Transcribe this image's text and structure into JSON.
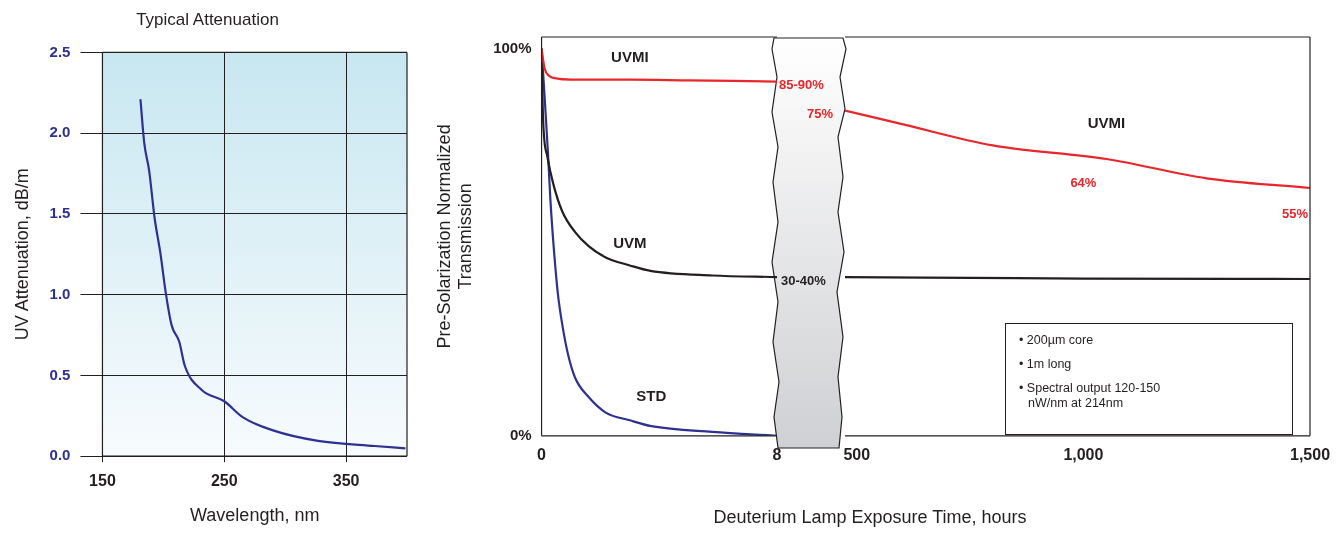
{
  "chart_data": [
    {
      "type": "line",
      "title": "Typical Attenuation",
      "xlabel": "Wavelength, nm",
      "ylabel": "UV Attenuation, dB/m",
      "xlim": [
        150,
        400
      ],
      "xticks": [
        150,
        250,
        350
      ],
      "ylim": [
        0,
        2.5
      ],
      "yticks": [
        {
          "value": 0,
          "label": "0.0"
        },
        0.5,
        {
          "value": 1,
          "label": "1.0"
        },
        1.5,
        {
          "value": 2,
          "label": "2.0"
        },
        2.5
      ],
      "grid": true,
      "series": [
        {
          "color": "#2e3192",
          "x": [
            181.2,
            184.3,
            188.3,
            192.9,
            197.5,
            202.2,
            206.8,
            213,
            217.6,
            231.5,
            250,
            265.4,
            290,
            327,
            373.5,
            398.7
          ],
          "values": [
            2.21,
            1.94,
            1.77,
            1.47,
            1.26,
            1.0,
            0.81,
            0.71,
            0.56,
            0.41,
            0.34,
            0.24,
            0.16,
            0.095,
            0.063,
            0.049
          ]
        }
      ]
    },
    {
      "type": "line",
      "ylabel": "Pre-Solarization Normalized Transmission",
      "xlim": [
        0,
        8
      ],
      "xticks": [
        0,
        8
      ],
      "ylim": [
        0,
        103
      ],
      "yticks": [
        {
          "value": 0,
          "label": "0%"
        },
        {
          "value": 100,
          "label": "100%"
        }
      ],
      "annotations": [
        {
          "text": "85-90%",
          "x": 8,
          "y": 91.5
        },
        {
          "text": "30-40%",
          "x": 8,
          "y": 41
        }
      ],
      "series": [
        {
          "name": "UVMI",
          "color": "#e8262b",
          "x": [
            0,
            0.1,
            0.25,
            0.5,
            1,
            3,
            5,
            8
          ],
          "values": [
            100,
            95,
            93,
            92.3,
            92,
            92,
            91.8,
            91.5
          ]
        },
        {
          "name": "UVM",
          "color": "#231f20",
          "x": [
            0,
            0.05,
            0.2,
            0.4,
            0.7,
            1.14,
            1.6,
            2.2,
            3,
            3.7,
            5.8,
            8
          ],
          "values": [
            100,
            82,
            72,
            65,
            58,
            52.6,
            49,
            46,
            44,
            42.6,
            41.4,
            41
          ]
        },
        {
          "name": "STD",
          "color": "#2e3192",
          "x": [
            0,
            0.1,
            0.21,
            0.3,
            0.41,
            0.55,
            0.72,
            0.9,
            1.14,
            1.6,
            2.18,
            3,
            3.73,
            5.8,
            8
          ],
          "values": [
            100,
            88,
            74,
            61,
            49,
            37,
            28,
            21,
            15,
            10,
            6,
            4,
            2.5,
            1,
            0
          ]
        }
      ]
    },
    {
      "type": "line",
      "xlabel": "Deuterium Lamp Exposure Time, hours",
      "xlim": [
        474,
        1500
      ],
      "xticks": [
        500,
        {
          "value": 1000,
          "label": "1,000"
        },
        {
          "value": 1500,
          "label": "1,500"
        }
      ],
      "ylim": [
        0,
        103
      ],
      "tick_labels": "x",
      "annotations": [
        {
          "text": "75%",
          "x": 474,
          "y": 84
        },
        {
          "text": "64%",
          "x": 1000,
          "y": 72.5
        },
        {
          "text": "55%",
          "x": 1500,
          "y": 64
        },
        "• 200µm core",
        "• 1m long",
        "• Spectral output 120-150 nW/nm at 214nm"
      ],
      "series": [
        {
          "name": "UVMI",
          "color": "#e8262b",
          "x": [
            474,
            600,
            800,
            1051,
            1272,
            1500
          ],
          "values": [
            84,
            80.5,
            75,
            71.5,
            66.5,
            64
          ]
        },
        {
          "color": "#231f20",
          "x": [
            474,
            1000,
            1500
          ],
          "values": [
            41,
            40.6,
            40.5
          ]
        }
      ]
    }
  ]
}
